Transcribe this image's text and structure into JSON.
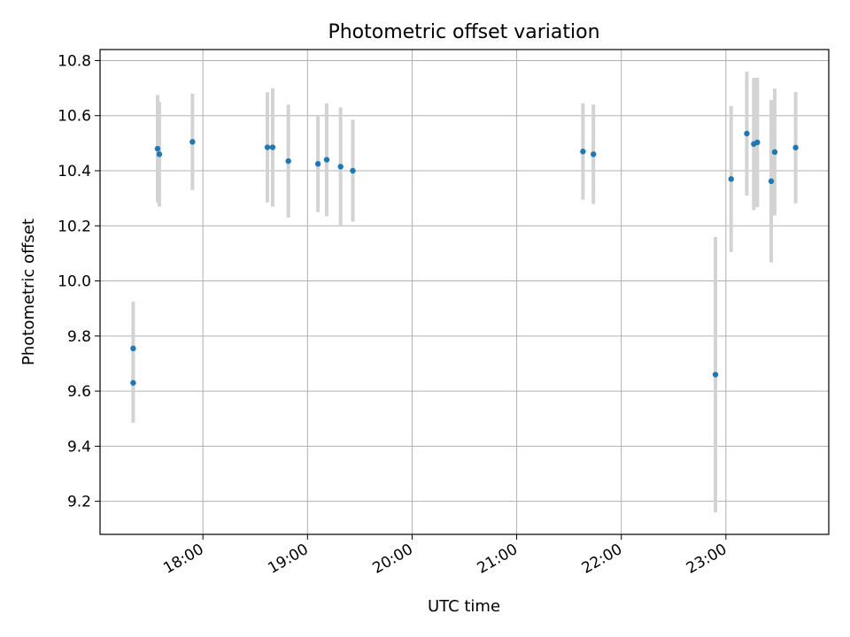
{
  "chart_data": {
    "type": "scatter",
    "title": "Photometric offset variation",
    "xlabel": "UTC time",
    "ylabel": "Photometric offset",
    "x_axis_type": "time",
    "xlim": [
      "17:01",
      "23:59"
    ],
    "ylim": [
      9.08,
      10.84
    ],
    "x_ticks": [
      "18:00",
      "19:00",
      "20:00",
      "21:00",
      "22:00",
      "23:00"
    ],
    "y_ticks": [
      9.2,
      9.4,
      9.6,
      9.8,
      10.0,
      10.2,
      10.4,
      10.6,
      10.8
    ],
    "y_tick_labels": [
      "9.2",
      "9.4",
      "9.6",
      "9.8",
      "10.0",
      "10.2",
      "10.4",
      "10.6",
      "10.8"
    ],
    "grid": true,
    "point_color": "#1f77b4",
    "errorbar_color": "#d3d3d3",
    "points": [
      {
        "x": "17:20",
        "y": 9.755,
        "err": 0.17
      },
      {
        "x": "17:20",
        "y": 9.63,
        "err": 0.145
      },
      {
        "x": "17:34",
        "y": 10.48,
        "err": 0.195
      },
      {
        "x": "17:35",
        "y": 10.46,
        "err": 0.19
      },
      {
        "x": "17:54",
        "y": 10.505,
        "err": 0.175
      },
      {
        "x": "18:37",
        "y": 10.485,
        "err": 0.2
      },
      {
        "x": "18:40",
        "y": 10.485,
        "err": 0.215
      },
      {
        "x": "18:49",
        "y": 10.435,
        "err": 0.205
      },
      {
        "x": "19:06",
        "y": 10.425,
        "err": 0.175
      },
      {
        "x": "19:11",
        "y": 10.44,
        "err": 0.205
      },
      {
        "x": "19:19",
        "y": 10.415,
        "err": 0.215
      },
      {
        "x": "19:26",
        "y": 10.4,
        "err": 0.185
      },
      {
        "x": "21:38",
        "y": 10.47,
        "err": 0.175
      },
      {
        "x": "21:44",
        "y": 10.46,
        "err": 0.18
      },
      {
        "x": "22:54",
        "y": 9.66,
        "err": 0.5
      },
      {
        "x": "23:03",
        "y": 10.37,
        "err": 0.265
      },
      {
        "x": "23:12",
        "y": 10.535,
        "err": 0.225
      },
      {
        "x": "23:16",
        "y": 10.497,
        "err": 0.24
      },
      {
        "x": "23:18",
        "y": 10.503,
        "err": 0.235
      },
      {
        "x": "23:26",
        "y": 10.362,
        "err": 0.295
      },
      {
        "x": "23:28",
        "y": 10.468,
        "err": 0.23
      },
      {
        "x": "23:40",
        "y": 10.484,
        "err": 0.202
      }
    ]
  }
}
